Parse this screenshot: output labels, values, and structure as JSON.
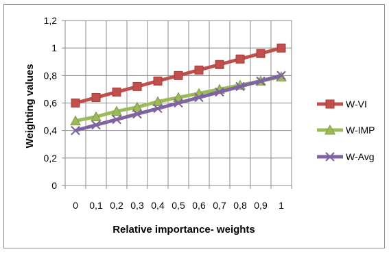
{
  "chart_data": {
    "type": "line",
    "title": "",
    "xlabel": "Relative importance- weights",
    "ylabel": "Weighting values",
    "x_tick_labels": [
      "0",
      "0,1",
      "0,2",
      "0,3",
      "0,4",
      "0,5",
      "0,6",
      "0,7",
      "0,8",
      "0,9",
      "1"
    ],
    "x": [
      0,
      0.1,
      0.2,
      0.3,
      0.4,
      0.5,
      0.6,
      0.7,
      0.8,
      0.9,
      1.0
    ],
    "y_tick_labels": [
      "0",
      "0,2",
      "0,4",
      "0,6",
      "0,8",
      "1",
      "1,2"
    ],
    "ylim": [
      0,
      1.2
    ],
    "grid": true,
    "legend_position": "right",
    "series": [
      {
        "name": "W-VI",
        "color": "#C0504D",
        "marker": "square",
        "values": [
          0.6,
          0.64,
          0.68,
          0.72,
          0.76,
          0.8,
          0.84,
          0.88,
          0.92,
          0.96,
          1.0
        ]
      },
      {
        "name": "W-IMP",
        "color": "#9BBB59",
        "marker": "triangle",
        "values": [
          0.47,
          0.5,
          0.54,
          0.57,
          0.61,
          0.64,
          0.67,
          0.7,
          0.73,
          0.76,
          0.79
        ]
      },
      {
        "name": "W-Avg",
        "color": "#8064A2",
        "marker": "x",
        "values": [
          0.4,
          0.44,
          0.48,
          0.52,
          0.56,
          0.6,
          0.64,
          0.68,
          0.72,
          0.76,
          0.8
        ]
      }
    ]
  }
}
